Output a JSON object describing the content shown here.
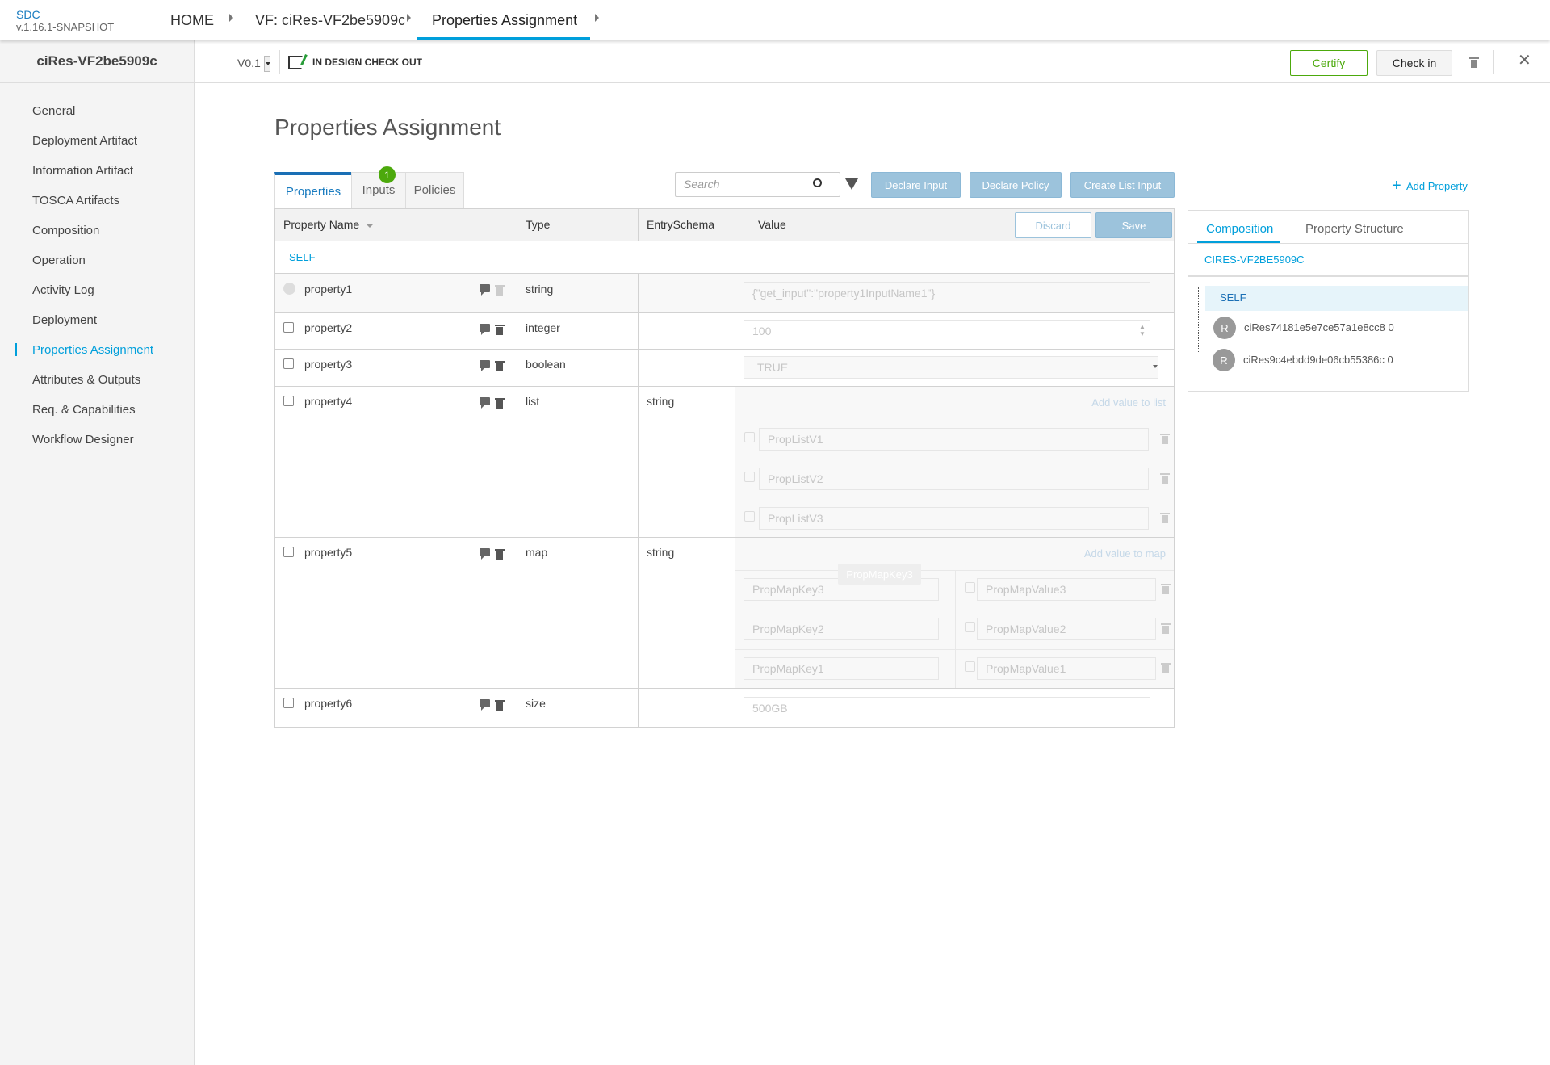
{
  "app": {
    "name": "SDC",
    "version": "v.1.16.1-SNAPSHOT"
  },
  "breadcrumb": [
    {
      "label": "HOME"
    },
    {
      "label": "VF: ciRes-VF2be5909c"
    },
    {
      "label": "Properties Assignment"
    }
  ],
  "sidebar": {
    "title": "ciRes-VF2be5909c",
    "items": [
      {
        "label": "General"
      },
      {
        "label": "Deployment Artifact"
      },
      {
        "label": "Information Artifact"
      },
      {
        "label": "TOSCA Artifacts"
      },
      {
        "label": "Composition"
      },
      {
        "label": "Operation"
      },
      {
        "label": "Activity Log"
      },
      {
        "label": "Deployment"
      },
      {
        "label": "Properties Assignment",
        "active": true
      },
      {
        "label": "Attributes & Outputs"
      },
      {
        "label": "Req. & Capabilities"
      },
      {
        "label": "Workflow Designer"
      }
    ]
  },
  "subheader": {
    "version": "V0.1",
    "status": "IN DESIGN CHECK OUT",
    "certify": "Certify",
    "checkin": "Check in"
  },
  "page": {
    "title": "Properties Assignment"
  },
  "tabs": [
    {
      "label": "Properties",
      "active": true
    },
    {
      "label": "Inputs",
      "badge": "1"
    },
    {
      "label": "Policies"
    }
  ],
  "toolbar": {
    "search_placeholder": "Search",
    "declare_input": "Declare Input",
    "declare_policy": "Declare Policy",
    "create_list_input": "Create List Input",
    "add_property": "Add Property"
  },
  "table": {
    "headers": {
      "name": "Property Name",
      "type": "Type",
      "entry": "EntrySchema",
      "value": "Value"
    },
    "discard": "Discard",
    "save": "Save",
    "group": "SELF",
    "rows": [
      {
        "name": "property1",
        "type": "string",
        "entry": "",
        "value": "{\"get_input\":\"property1InputName1\"}"
      },
      {
        "name": "property2",
        "type": "integer",
        "entry": "",
        "value": "100"
      },
      {
        "name": "property3",
        "type": "boolean",
        "entry": "",
        "value": "TRUE"
      },
      {
        "name": "property4",
        "type": "list",
        "entry": "string",
        "add_label": "Add value to list",
        "items": [
          "PropListV1",
          "PropListV2",
          "PropListV3"
        ]
      },
      {
        "name": "property5",
        "type": "map",
        "entry": "string",
        "add_label": "Add value to map",
        "tooltip": "PropMapKey3",
        "items": [
          {
            "key": "PropMapKey3",
            "value": "PropMapValue3"
          },
          {
            "key": "PropMapKey2",
            "value": "PropMapValue2"
          },
          {
            "key": "PropMapKey1",
            "value": "PropMapValue1"
          }
        ]
      },
      {
        "name": "property6",
        "type": "size",
        "entry": "",
        "value": "500GB"
      }
    ]
  },
  "panel": {
    "tabs": [
      {
        "label": "Composition",
        "active": true
      },
      {
        "label": "Property Structure"
      }
    ],
    "component": "CIRES-VF2BE5909C",
    "tree": [
      {
        "label": "SELF"
      },
      {
        "label": "ciRes74181e5e7ce57a1e8cc8 0",
        "avatar": "R"
      },
      {
        "label": "ciRes9c4ebdd9de06cb55386c 0",
        "avatar": "R"
      }
    ]
  },
  "colors": {
    "accent": "#009fdb",
    "certify": "#4ca90c",
    "button_blue": "#9cc3dc",
    "badge": "#4ca90c"
  }
}
